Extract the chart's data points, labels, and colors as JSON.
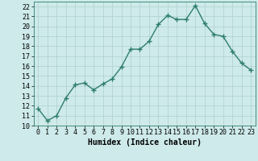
{
  "x": [
    0,
    1,
    2,
    3,
    4,
    5,
    6,
    7,
    8,
    9,
    10,
    11,
    12,
    13,
    14,
    15,
    16,
    17,
    18,
    19,
    20,
    21,
    22,
    23
  ],
  "y": [
    11.7,
    10.5,
    11.0,
    12.8,
    14.1,
    14.3,
    13.6,
    14.2,
    14.7,
    15.9,
    17.7,
    17.7,
    18.5,
    20.2,
    21.1,
    20.7,
    20.7,
    22.1,
    20.3,
    19.2,
    19.0,
    17.5,
    16.3,
    15.6
  ],
  "xlabel": "Humidex (Indice chaleur)",
  "ylim": [
    10,
    22.5
  ],
  "xlim": [
    -0.5,
    23.5
  ],
  "yticks": [
    10,
    11,
    12,
    13,
    14,
    15,
    16,
    17,
    18,
    19,
    20,
    21,
    22
  ],
  "xticks": [
    0,
    1,
    2,
    3,
    4,
    5,
    6,
    7,
    8,
    9,
    10,
    11,
    12,
    13,
    14,
    15,
    16,
    17,
    18,
    19,
    20,
    21,
    22,
    23
  ],
  "line_color": "#2e7d6e",
  "bg_color": "#ceeaea",
  "grid_color": "#aed0d0",
  "marker": "+",
  "linewidth": 1.0,
  "markersize": 4,
  "markeredgewidth": 1.0,
  "xlabel_fontsize": 7,
  "tick_fontsize": 6
}
